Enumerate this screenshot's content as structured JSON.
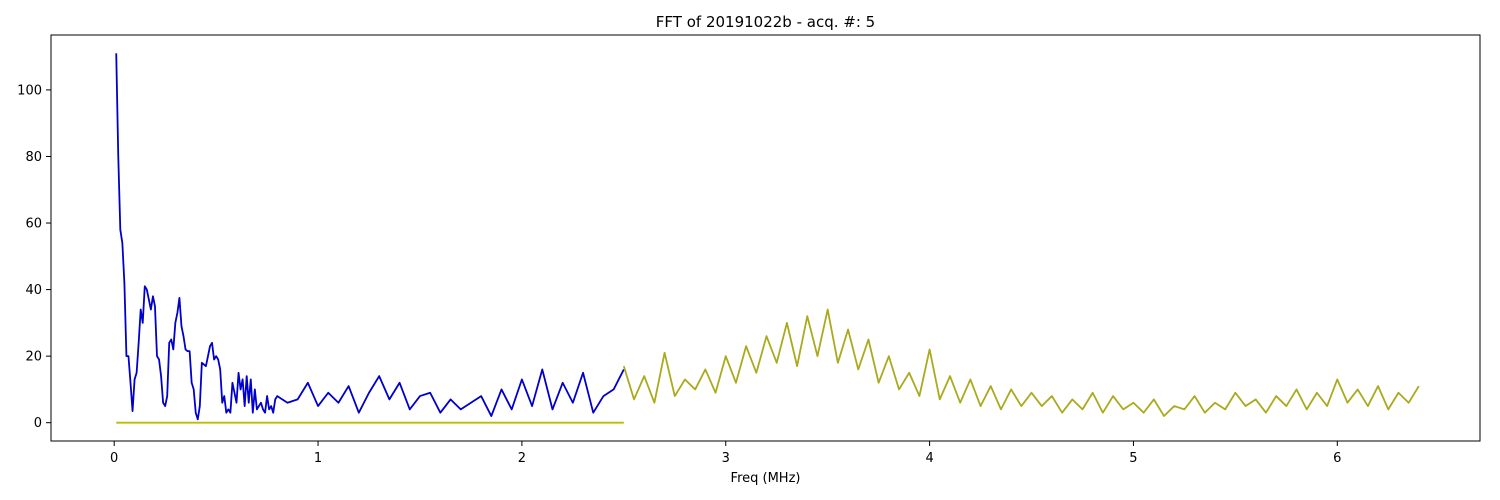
{
  "chart_data": {
    "type": "line",
    "title": "FFT of 20191022b - acq. #: 5",
    "xlabel": "Freq (MHz)",
    "ylabel": "",
    "xlim": [
      -0.31,
      6.7
    ],
    "ylim": [
      -5.5,
      116.5
    ],
    "xticks": [
      0,
      1,
      2,
      3,
      4,
      5,
      6
    ],
    "yticks": [
      0,
      20,
      40,
      60,
      80,
      100
    ],
    "grid": false,
    "series": [
      {
        "color": "#0000cc",
        "x": [
          0.01,
          0.02,
          0.03,
          0.04,
          0.05,
          0.06,
          0.07,
          0.08,
          0.09,
          0.1,
          0.11,
          0.12,
          0.13,
          0.14,
          0.15,
          0.16,
          0.17,
          0.18,
          0.19,
          0.2,
          0.21,
          0.22,
          0.23,
          0.24,
          0.25,
          0.26,
          0.27,
          0.28,
          0.29,
          0.3,
          0.31,
          0.32,
          0.33,
          0.34,
          0.35,
          0.36,
          0.37,
          0.38,
          0.39,
          0.4,
          0.41,
          0.42,
          0.43,
          0.44,
          0.45,
          0.46,
          0.47,
          0.48,
          0.49,
          0.5,
          0.51,
          0.52,
          0.53,
          0.54,
          0.55,
          0.56,
          0.57,
          0.58,
          0.59,
          0.6,
          0.61,
          0.62,
          0.63,
          0.64,
          0.65,
          0.66,
          0.67,
          0.68,
          0.69,
          0.7,
          0.71,
          0.72,
          0.73,
          0.74,
          0.75,
          0.76,
          0.77,
          0.78,
          0.79,
          0.8,
          0.85,
          0.9,
          0.95,
          1.0,
          1.05,
          1.1,
          1.15,
          1.2,
          1.25,
          1.3,
          1.35,
          1.4,
          1.45,
          1.5,
          1.55,
          1.6,
          1.65,
          1.7,
          1.75,
          1.8,
          1.85,
          1.9,
          1.95,
          2.0,
          2.05,
          2.1,
          2.15,
          2.2,
          2.25,
          2.3,
          2.35,
          2.4,
          2.45,
          2.5
        ],
        "values": [
          111,
          80,
          58,
          54,
          42,
          20,
          20,
          12,
          3.5,
          13,
          15,
          24,
          34,
          30,
          41,
          40,
          37,
          34,
          38,
          35,
          20,
          19,
          14,
          6,
          5,
          8,
          24,
          25,
          22,
          30,
          33,
          37.5,
          29,
          26,
          22,
          21.5,
          21.5,
          12,
          10,
          3,
          1,
          5,
          18,
          17.5,
          17,
          20,
          23,
          24,
          19,
          20,
          19,
          16,
          6,
          8,
          3,
          4,
          3,
          12,
          9,
          6,
          15,
          10,
          13,
          5,
          14,
          6,
          13,
          3,
          10,
          4,
          5,
          6,
          4,
          3,
          8,
          4,
          5,
          3,
          7,
          8,
          6,
          7,
          12,
          5,
          9,
          6,
          11,
          3,
          9,
          14,
          7,
          12,
          4,
          8,
          9,
          3,
          7,
          4,
          6,
          8,
          2,
          10,
          4,
          13,
          5,
          16,
          4,
          12,
          6,
          15,
          3,
          8,
          10,
          16
        ],
        "name": ""
      },
      {
        "color": "#bcbc00",
        "x": [
          0.01,
          2.5
        ],
        "values": [
          0,
          0
        ],
        "name": ""
      },
      {
        "color": "#aaaa1e",
        "x": [
          2.5,
          2.55,
          2.6,
          2.65,
          2.7,
          2.75,
          2.8,
          2.85,
          2.9,
          2.95,
          3.0,
          3.05,
          3.1,
          3.15,
          3.2,
          3.25,
          3.3,
          3.35,
          3.4,
          3.45,
          3.5,
          3.55,
          3.6,
          3.65,
          3.7,
          3.75,
          3.8,
          3.85,
          3.9,
          3.95,
          4.0,
          4.05,
          4.1,
          4.15,
          4.2,
          4.25,
          4.3,
          4.35,
          4.4,
          4.45,
          4.5,
          4.55,
          4.6,
          4.65,
          4.7,
          4.75,
          4.8,
          4.85,
          4.9,
          4.95,
          5.0,
          5.05,
          5.1,
          5.15,
          5.2,
          5.25,
          5.3,
          5.35,
          5.4,
          5.45,
          5.5,
          5.55,
          5.6,
          5.65,
          5.7,
          5.75,
          5.8,
          5.85,
          5.9,
          5.95,
          6.0,
          6.05,
          6.1,
          6.15,
          6.2,
          6.25,
          6.3,
          6.35,
          6.4
        ],
        "values": [
          17,
          7,
          14,
          6,
          21,
          8,
          13,
          10,
          16,
          9,
          20,
          12,
          23,
          15,
          26,
          18,
          30,
          17,
          32,
          20,
          34,
          18,
          28,
          16,
          25,
          12,
          20,
          10,
          15,
          8,
          22,
          7,
          14,
          6,
          13,
          5,
          11,
          4,
          10,
          5,
          9,
          5,
          8,
          3,
          7,
          4,
          9,
          3,
          8,
          4,
          6,
          3,
          7,
          2,
          5,
          4,
          8,
          3,
          6,
          4,
          9,
          5,
          7,
          3,
          8,
          5,
          10,
          4,
          9,
          5,
          13,
          6,
          10,
          5,
          11,
          4,
          9,
          6,
          11
        ]
      }
    ]
  }
}
